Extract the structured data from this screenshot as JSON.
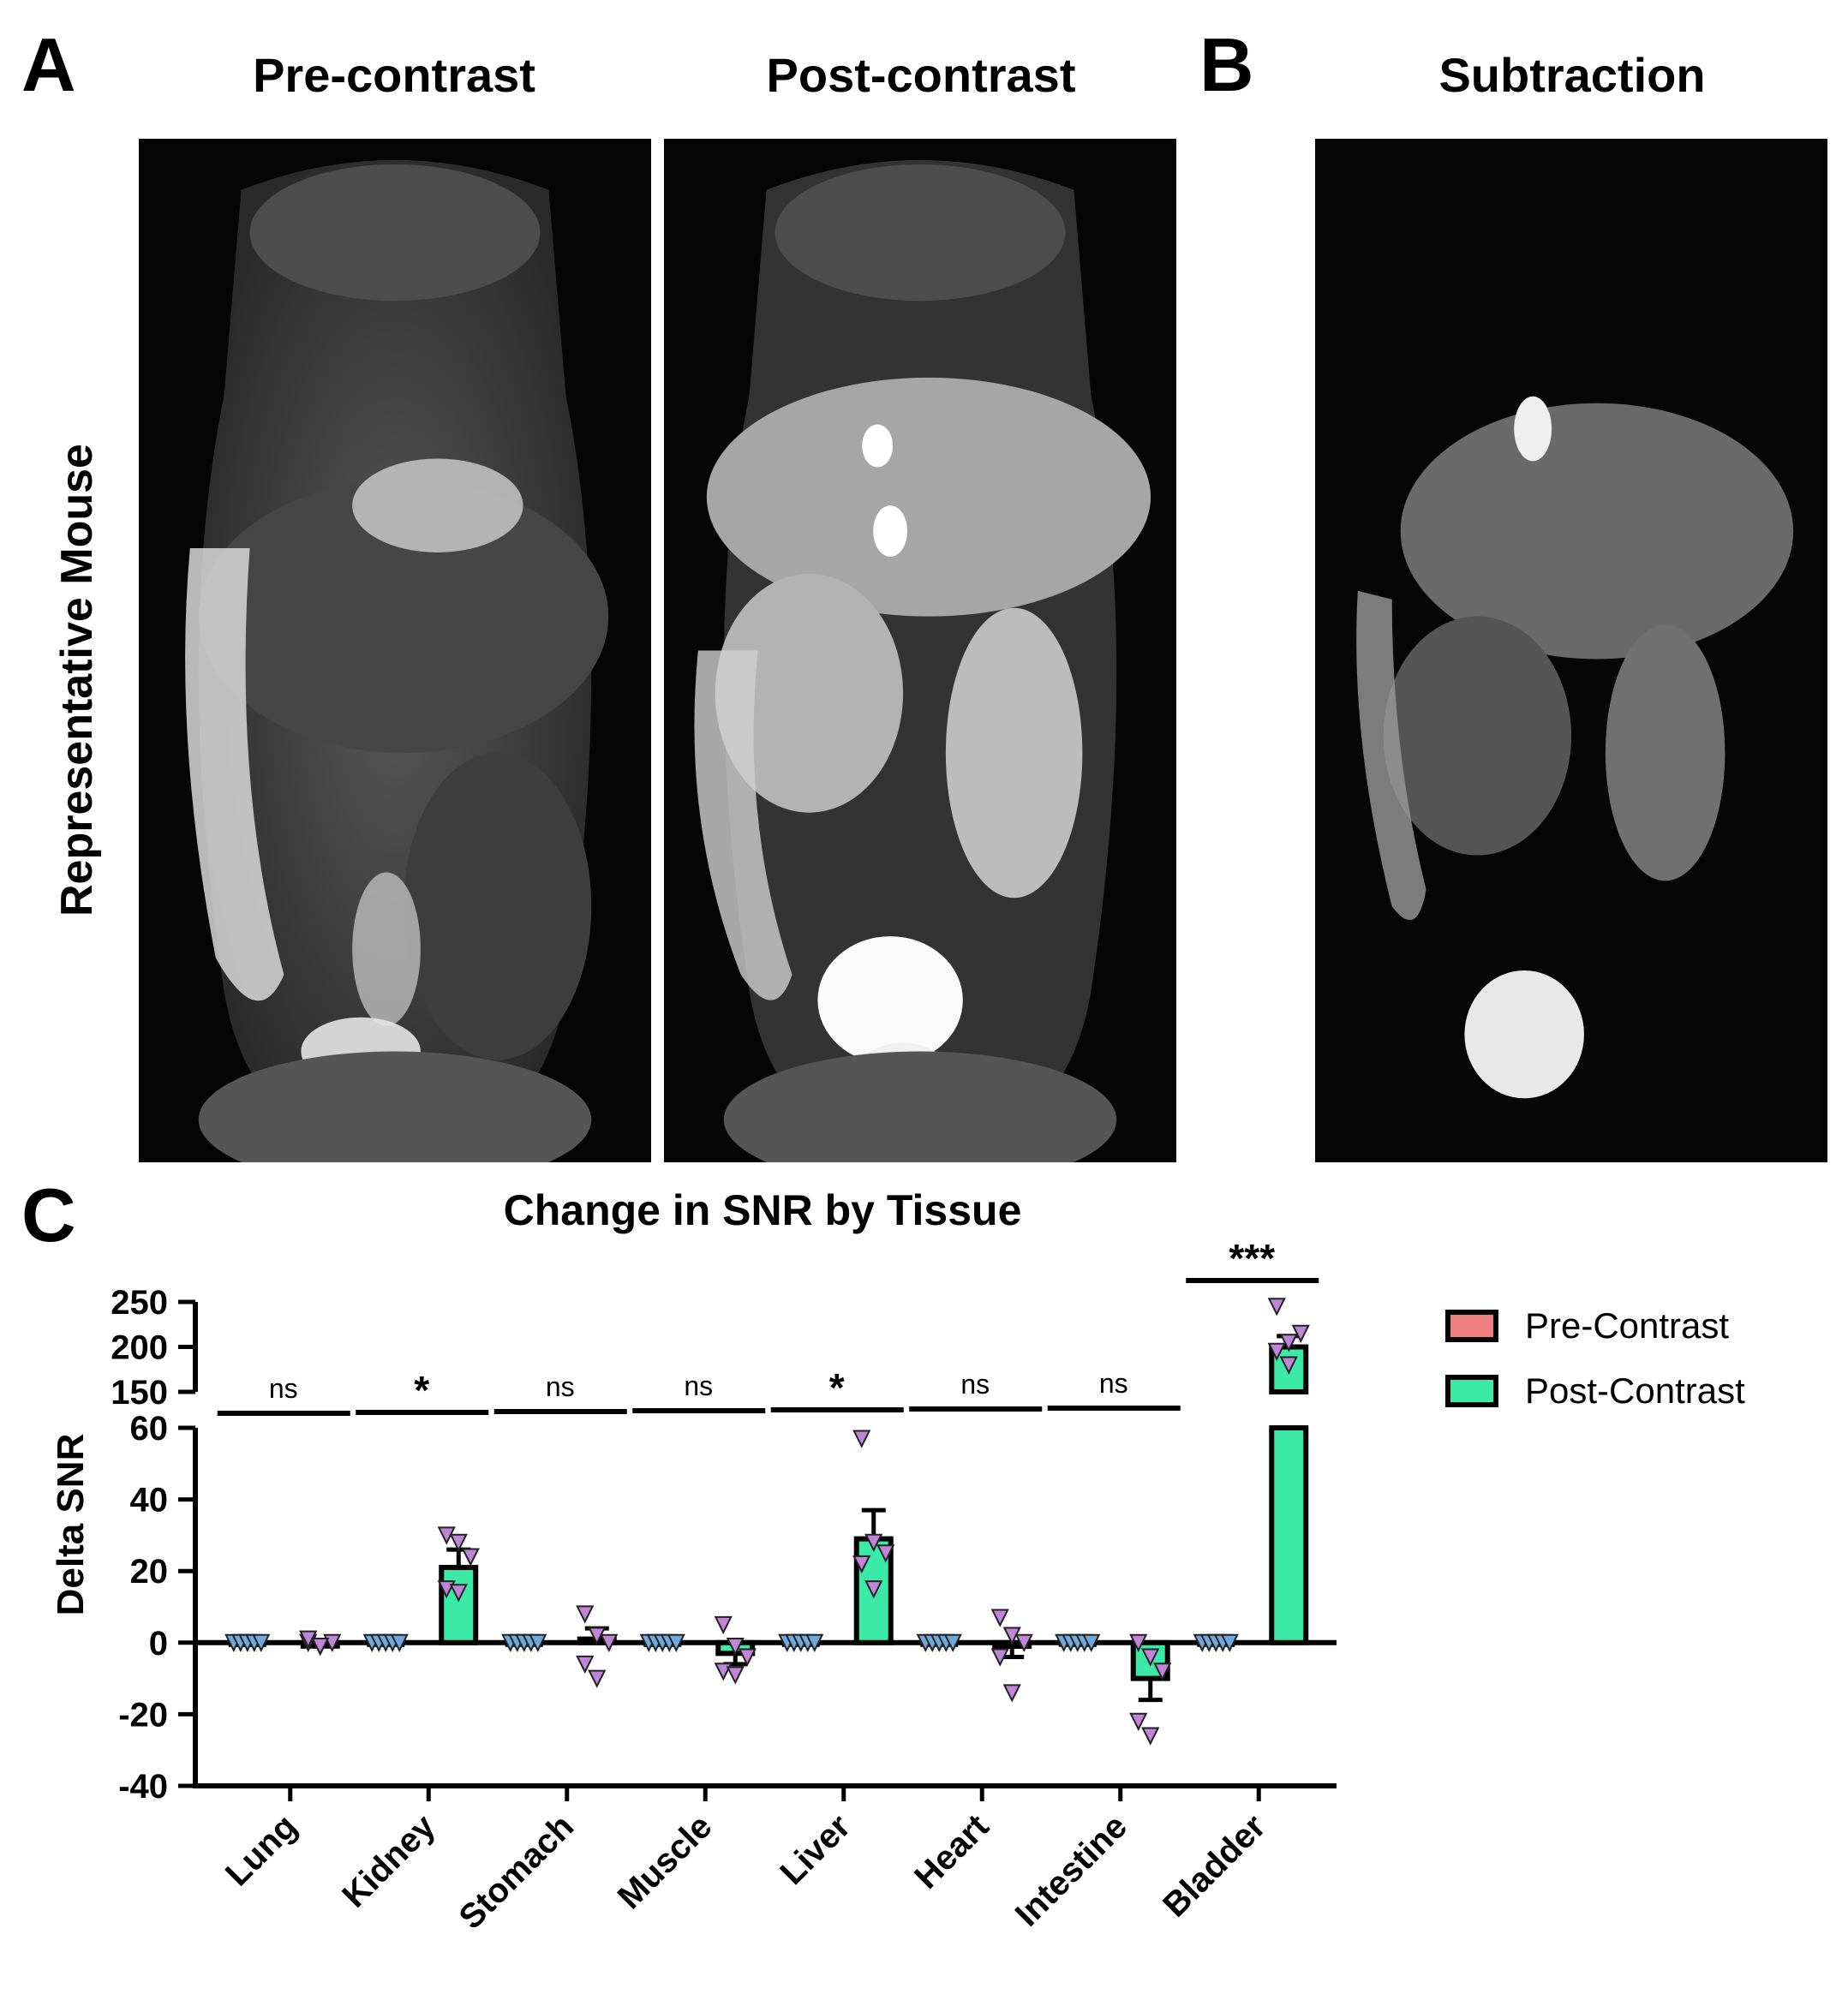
{
  "panels": {
    "a_letter": "A",
    "b_letter": "B",
    "c_letter": "C",
    "pre_title": "Pre-contrast",
    "post_title": "Post-contrast",
    "sub_title": "Subtraction",
    "row_label": "Representative Mouse"
  },
  "colors": {
    "pre_contrast": "#F08080",
    "post_contrast": "#3BEAA6",
    "pre_points": "#6FA8DC",
    "post_points": "#C084D8"
  },
  "chart_data": {
    "type": "bar",
    "title": "Change in SNR by Tissue",
    "ylabel": "Delta SNR",
    "xlabel": "",
    "categories": [
      "Lung",
      "Kidney",
      "Stomach",
      "Muscle",
      "Liver",
      "Heart",
      "Intestine",
      "Bladder"
    ],
    "broken_axis": true,
    "ylim_lower": [
      -40,
      60
    ],
    "ylim_upper": [
      150,
      250
    ],
    "yticks_lower": [
      "-40",
      "-20",
      "0",
      "20",
      "40",
      "60"
    ],
    "yticks_upper": [
      "150",
      "200",
      "250"
    ],
    "series": [
      {
        "name": "Pre-Contrast",
        "values": [
          0,
          0,
          0,
          0,
          0,
          0,
          0,
          0
        ],
        "errors": [
          0,
          0,
          0,
          0,
          0,
          0,
          0,
          0
        ],
        "points": [
          [
            0,
            0,
            0,
            0,
            0
          ],
          [
            0,
            0,
            0,
            0,
            0
          ],
          [
            0,
            0,
            0,
            0,
            0
          ],
          [
            0,
            0,
            0,
            0,
            0
          ],
          [
            0,
            0,
            0,
            0,
            0
          ],
          [
            0,
            0,
            0,
            0,
            0
          ],
          [
            0,
            0,
            0,
            0,
            0
          ],
          [
            0,
            0,
            0,
            0,
            0
          ]
        ]
      },
      {
        "name": "Post-Contrast",
        "values": [
          0,
          21,
          1,
          -3,
          29,
          -1,
          -10,
          200
        ],
        "errors": [
          0.5,
          5,
          3,
          3,
          8,
          3,
          6,
          12
        ],
        "points": [
          [
            0,
            -1,
            0,
            1,
            -1
          ],
          [
            30,
            28,
            24,
            15,
            14
          ],
          [
            8,
            2,
            0,
            -6,
            -10
          ],
          [
            5,
            -1,
            -4,
            -8,
            -9
          ],
          [
            57,
            28,
            25,
            22,
            15
          ],
          [
            7,
            2,
            0,
            -4,
            -14
          ],
          [
            0,
            -4,
            -8,
            -22,
            -26
          ],
          [
            245,
            205,
            215,
            195,
            180
          ]
        ]
      }
    ],
    "significance": [
      "ns",
      "*",
      "ns",
      "ns",
      "*",
      "ns",
      "ns",
      "***"
    ],
    "legend_position": "right"
  }
}
